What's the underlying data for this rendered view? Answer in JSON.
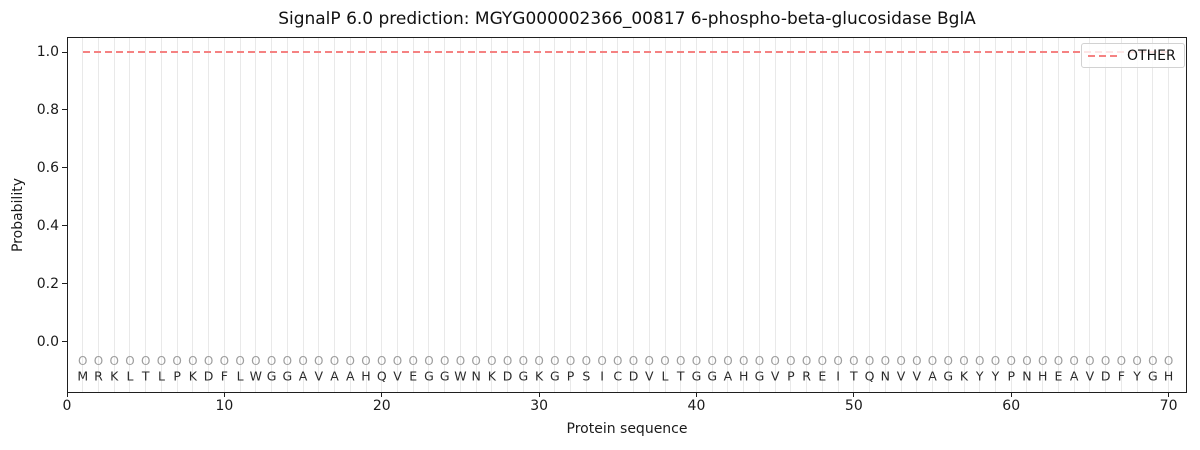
{
  "title": "SignalP 6.0 prediction: MGYG000002366_00817 6-phospho-beta-glucosidase BglA",
  "colors": {
    "other_line": "#f58282",
    "gridline": "#e9e9e9",
    "predicted_tag": "#9e9e9e",
    "sequence_letter": "#2a2a2a",
    "axis": "#1f1f1f",
    "legend_border": "#d2d2d2"
  },
  "chart_data": {
    "type": "line",
    "title": "SignalP 6.0 prediction: MGYG000002366_00817 6-phospho-beta-glucosidase BglA",
    "xlabel": "Protein sequence",
    "ylabel": "Probability",
    "x_ticks": [
      0,
      10,
      20,
      30,
      40,
      50,
      60,
      70
    ],
    "y_ticks": [
      0.0,
      0.2,
      0.4,
      0.6,
      0.8,
      1.0
    ],
    "xlim": [
      0,
      71.2
    ],
    "ylim": [
      -0.18,
      1.05
    ],
    "grid": {
      "vertical_line_per_residue": true,
      "horizontal": false
    },
    "sequence": "MRKLTLPKDFLWGGAVAAHQVEGGWNKDGKGPSICDVLTGGAHGVPREITQNVVAGKYYPNHEAVDFYGH",
    "predicted_tags": "OOOOOOOOOOOOOOOOOOOOOOOOOOOOOOOOOOOOOOOOOOOOOOOOOOOOOOOOOOOOOOOOOOOOOO",
    "series": [
      {
        "name": "OTHER",
        "color": "#f58282",
        "linestyle": "dashed",
        "x_positions": {
          "from": 1,
          "to": 70,
          "step": 1
        },
        "values": [
          1.0,
          1.0,
          1.0,
          1.0,
          1.0,
          1.0,
          1.0,
          1.0,
          1.0,
          1.0,
          1.0,
          1.0,
          1.0,
          1.0,
          1.0,
          1.0,
          1.0,
          1.0,
          1.0,
          1.0,
          1.0,
          1.0,
          1.0,
          1.0,
          1.0,
          1.0,
          1.0,
          1.0,
          1.0,
          1.0,
          1.0,
          1.0,
          1.0,
          1.0,
          1.0,
          1.0,
          1.0,
          1.0,
          1.0,
          1.0,
          1.0,
          1.0,
          1.0,
          1.0,
          1.0,
          1.0,
          1.0,
          1.0,
          1.0,
          1.0,
          1.0,
          1.0,
          1.0,
          1.0,
          1.0,
          1.0,
          1.0,
          1.0,
          1.0,
          1.0,
          1.0,
          1.0,
          1.0,
          1.0,
          1.0,
          1.0,
          1.0,
          1.0,
          1.0,
          1.0
        ]
      }
    ],
    "legend": {
      "position": "upper right",
      "entries": [
        {
          "label": "OTHER",
          "style": "dashed",
          "color": "#f58282"
        }
      ]
    }
  }
}
